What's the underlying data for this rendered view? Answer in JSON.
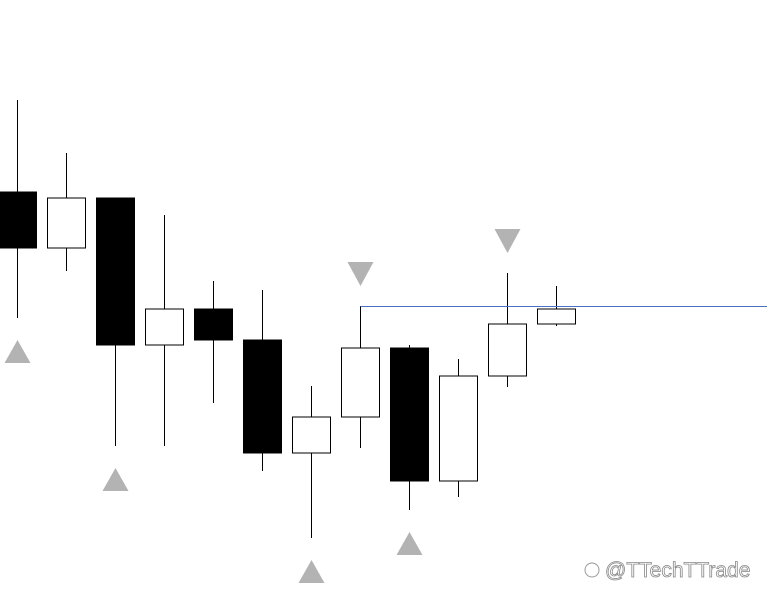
{
  "chart_data": {
    "type": "candlestick",
    "open": [
      414,
      358,
      408,
      261,
      297,
      266,
      153,
      189,
      258,
      125,
      230,
      282
    ],
    "high": [
      506,
      453,
      408,
      391,
      325,
      316,
      220,
      300,
      261,
      247,
      333,
      320
    ],
    "low": [
      288,
      335,
      160,
      160,
      203,
      135,
      68,
      158,
      96,
      109,
      219,
      280
    ],
    "close": [
      358,
      408,
      261,
      297,
      266,
      153,
      189,
      258,
      125,
      230,
      282,
      297
    ],
    "ylim": [
      0,
      606
    ],
    "markers": [
      {
        "index": 0,
        "direction": "up"
      },
      {
        "index": 2,
        "direction": "up"
      },
      {
        "index": 6,
        "direction": "up"
      },
      {
        "index": 8,
        "direction": "up"
      },
      {
        "index": 7,
        "direction": "down"
      },
      {
        "index": 10,
        "direction": "down"
      }
    ],
    "marker_color": "#b3b3b3",
    "level": 300,
    "level_start": 7,
    "level_color": "#4a72c4",
    "watermark": "@TTechTTrade"
  }
}
